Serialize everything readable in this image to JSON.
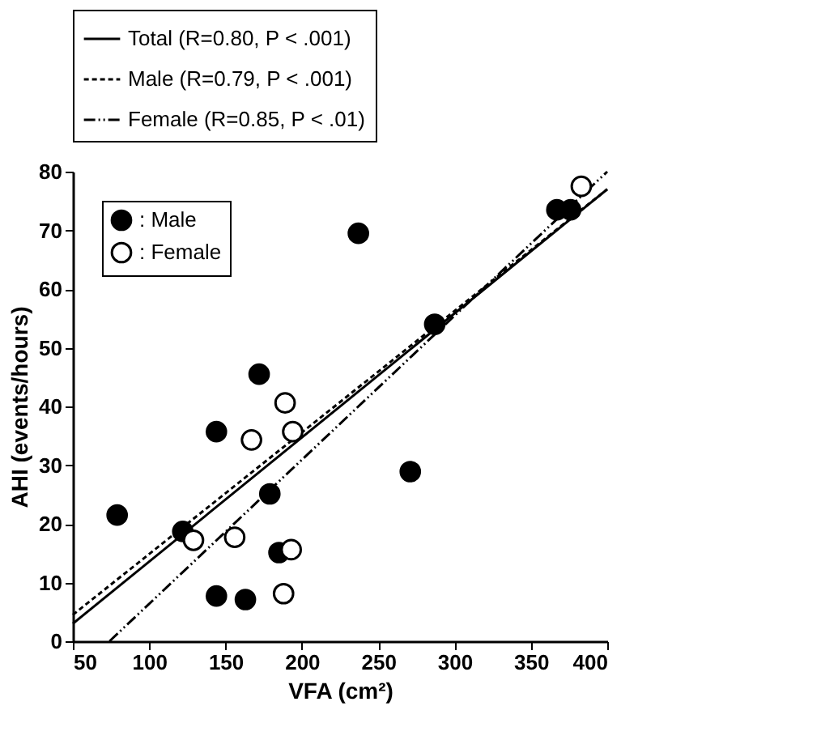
{
  "chart_data": {
    "type": "scatter",
    "xlabel": "VFA (cm²)",
    "ylabel": "AHI (events/hours)",
    "xlim": [
      50,
      400
    ],
    "xticks": [
      50,
      100,
      150,
      200,
      250,
      300,
      350,
      400
    ],
    "ylim": [
      0,
      80
    ],
    "yticks": [
      0,
      10,
      20,
      30,
      40,
      50,
      60,
      70,
      80
    ],
    "grid": false,
    "legend": "top left",
    "series": [
      {
        "name": ": Male",
        "marker": "circle",
        "color": "#000000",
        "x": [
          79,
          122,
          144,
          144,
          163,
          172,
          179,
          185,
          237,
          271,
          287,
          367,
          376
        ],
        "values": [
          21.5,
          18.7,
          35.7,
          7.7,
          7.1,
          45.5,
          25.1,
          15.1,
          69.5,
          28.9,
          54,
          73.5,
          73.5
        ]
      },
      {
        "name": ": Female",
        "marker": "circle",
        "color": "#ffffff",
        "x": [
          129,
          156,
          167,
          189,
          194,
          193,
          188,
          383
        ],
        "values": [
          17.2,
          17.7,
          34.3,
          40.6,
          35.7,
          15.6,
          8.1,
          77.5
        ]
      },
      {
        "name": "Total (R=0.80, P < .001)",
        "type": "line",
        "line_style": "solid",
        "color": "#000000",
        "x": [
          50,
          400
        ],
        "values": [
          3,
          77
        ]
      },
      {
        "name": "Male (R=0.79, P < .001)",
        "type": "line",
        "line_style": "dashed",
        "color": "#000000",
        "x": [
          50,
          400
        ],
        "values": [
          4.5,
          77
        ]
      },
      {
        "name": "Female (R=0.85, P < .01)",
        "type": "line",
        "line_style": "dotted",
        "color": "#000000",
        "x": [
          74,
          400
        ],
        "values": [
          0,
          80
        ]
      }
    ]
  }
}
